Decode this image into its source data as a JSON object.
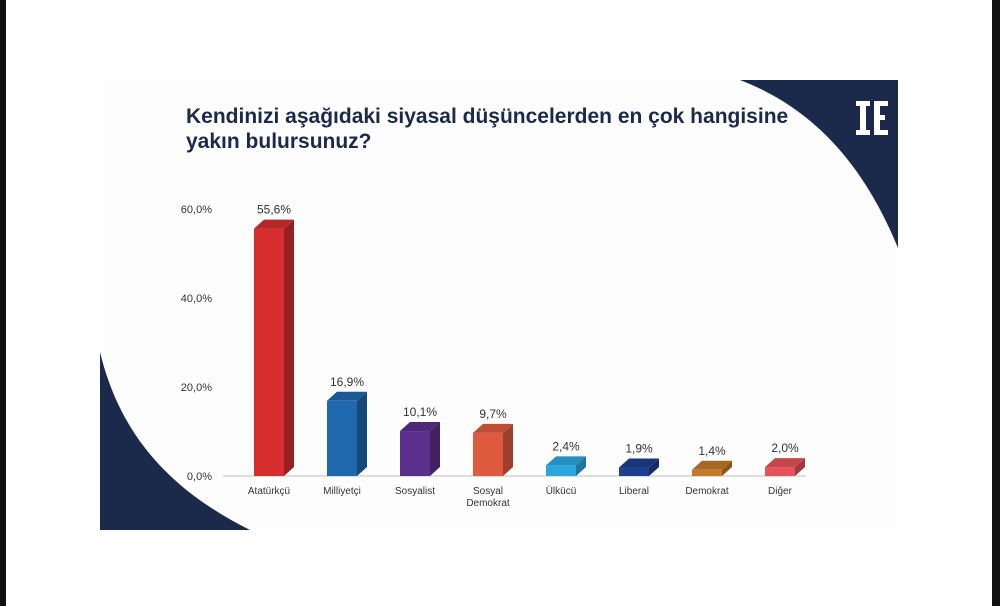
{
  "title": "Kendinizi aşağıdaki siyasal düşüncelerden en çok hangisine yakın bulursunuz?",
  "colors": {
    "navy": "#1b2a4a",
    "background": "#fdfdfd"
  },
  "chart_data": {
    "type": "bar",
    "title": "Kendinizi aşağıdaki siyasal düşüncelerden en çok hangisine yakın bulursunuz?",
    "xlabel": "",
    "ylabel": "",
    "ylim": [
      0,
      60
    ],
    "y_ticks": [
      "60,0%",
      "40,0%",
      "20,0%",
      "0,0%"
    ],
    "y_tick_values": [
      60,
      40,
      20,
      0
    ],
    "grid": false,
    "legend": "none",
    "bar_style": "3d",
    "categories": [
      "Atatürkçü",
      "Milliyetçi",
      "Sosyalist",
      "Sosyal Demokrat",
      "Ülkücü",
      "Liberal",
      "Demokrat",
      "Diğer"
    ],
    "category_lines": [
      [
        "Atatürkçü"
      ],
      [
        "Milliyetçi"
      ],
      [
        "Sosyalist"
      ],
      [
        "Sosyal",
        "Demokrat"
      ],
      [
        "Ülkücü"
      ],
      [
        "Liberal"
      ],
      [
        "Demokrat"
      ],
      [
        "Diğer"
      ]
    ],
    "values": [
      55.6,
      16.9,
      10.1,
      9.7,
      2.4,
      1.9,
      1.4,
      2.0
    ],
    "value_labels": [
      "55,6%",
      "16,9%",
      "10,1%",
      "9,7%",
      "2,4%",
      "1,9%",
      "1,4%",
      "2,0%"
    ],
    "bar_colors": [
      "#d62e2e",
      "#2068ae",
      "#5b2f8c",
      "#e05a3f",
      "#2aa8dd",
      "#1e3f8f",
      "#c57a27",
      "#e55358"
    ]
  }
}
